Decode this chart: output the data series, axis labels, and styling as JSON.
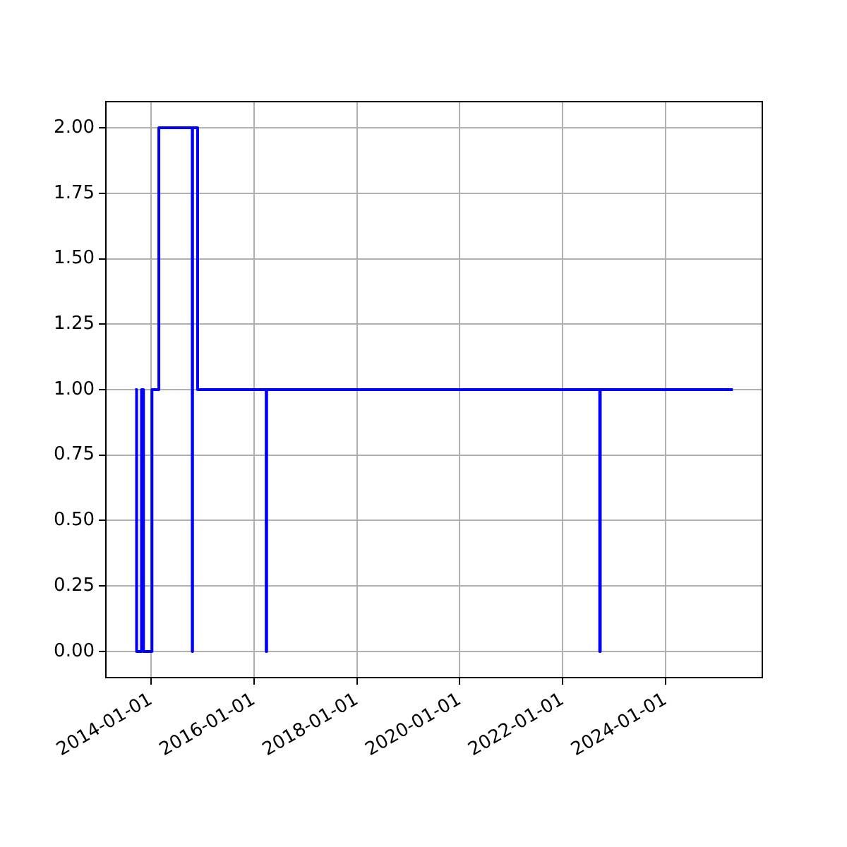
{
  "chart_data": {
    "type": "step",
    "x": [
      "2013-09-10",
      "2013-09-20",
      "2013-10-25",
      "2013-11-08",
      "2014-01-07",
      "2014-02-25",
      "2014-10-20",
      "2014-10-22",
      "2014-11-27",
      "2016-03-28",
      "2016-03-31",
      "2022-09-20",
      "2022-09-24",
      "2025-04-22"
    ],
    "series": [
      {
        "color": "#0000ff",
        "values": [
          1,
          0,
          1,
          0,
          1,
          2,
          0,
          2,
          1,
          0,
          1,
          0,
          1,
          1
        ]
      }
    ],
    "xlim": [
      "2013-02-14",
      "2025-11-17"
    ],
    "xticks": [
      "2014-01-01",
      "2016-01-01",
      "2018-01-01",
      "2020-01-01",
      "2022-01-01",
      "2024-01-01"
    ],
    "ylim": [
      -0.1,
      2.1
    ],
    "yticks": [
      {
        "value": 0,
        "label": "0.00"
      },
      {
        "value": 0.25,
        "label": "0.25"
      },
      {
        "value": 0.5,
        "label": "0.50"
      },
      {
        "value": 0.75,
        "label": "0.75"
      },
      {
        "value": 1,
        "label": "1.00"
      },
      {
        "value": 1.25,
        "label": "1.25"
      },
      {
        "value": 1.5,
        "label": "1.50"
      },
      {
        "value": 1.75,
        "label": "1.75"
      },
      {
        "value": 2,
        "label": "2.00"
      }
    ],
    "grid": true
  }
}
